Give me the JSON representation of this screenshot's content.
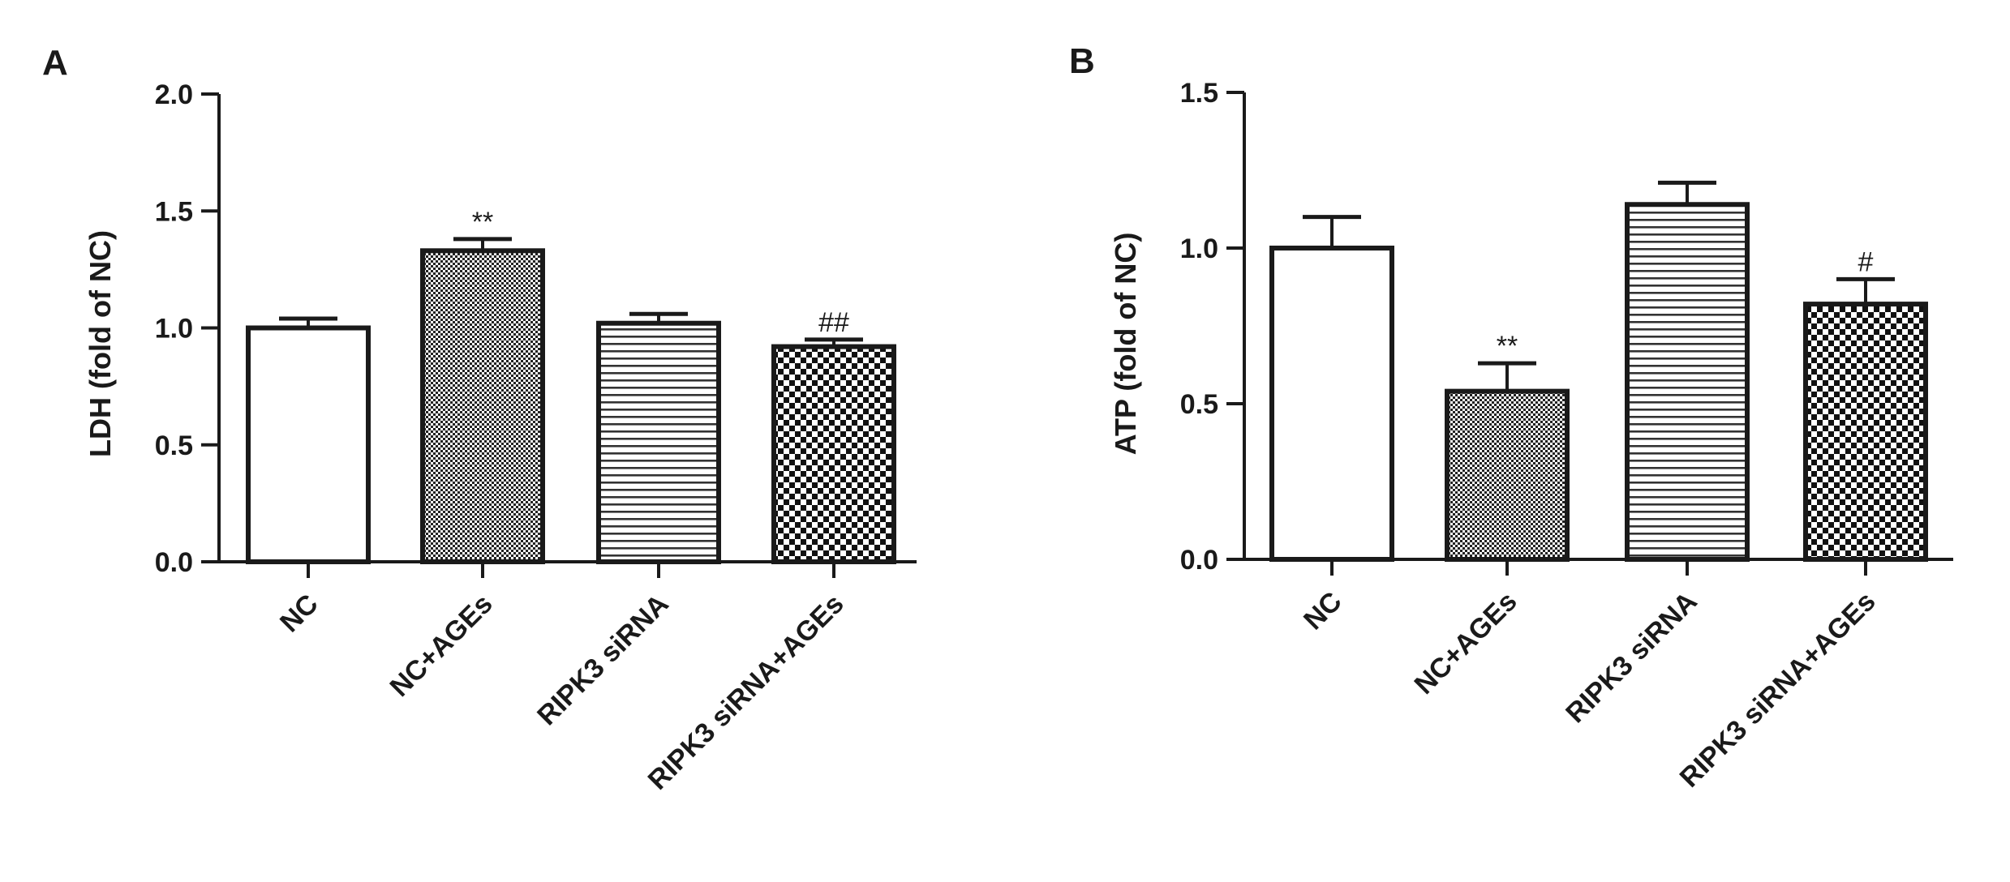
{
  "chart_data": [
    {
      "type": "bar",
      "panel": "A",
      "ylabel": "LDH (fold of NC)",
      "xlabel": "",
      "ylim": [
        0,
        2.0
      ],
      "yticks": [
        0.0,
        0.5,
        1.0,
        1.5,
        2.0
      ],
      "ytick_labels": [
        "0.0",
        "0.5",
        "1.0",
        "1.5",
        "2.0"
      ],
      "categories": [
        "NC",
        "NC+AGEs",
        "RIPK3 siRNA",
        "RIPK3 siRNA+AGEs"
      ],
      "values": [
        1.0,
        1.33,
        1.02,
        0.92
      ],
      "errors": [
        0.04,
        0.05,
        0.04,
        0.03
      ],
      "significance": [
        "",
        "**",
        "",
        "##"
      ],
      "patterns": [
        "white",
        "fine-dots",
        "horizontal-lines",
        "checker"
      ],
      "grid": false
    },
    {
      "type": "bar",
      "panel": "B",
      "ylabel": "ATP (fold of NC)",
      "xlabel": "",
      "ylim": [
        0,
        1.5
      ],
      "yticks": [
        0.0,
        0.5,
        1.0,
        1.5
      ],
      "ytick_labels": [
        "0.0",
        "0.5",
        "1.0",
        "1.5"
      ],
      "categories": [
        "NC",
        "NC+AGEs",
        "RIPK3 siRNA",
        "RIPK3 siRNA+AGEs"
      ],
      "values": [
        1.0,
        0.54,
        1.14,
        0.82
      ],
      "errors": [
        0.1,
        0.09,
        0.07,
        0.08
      ],
      "significance": [
        "",
        "**",
        "",
        "#"
      ],
      "patterns": [
        "white",
        "fine-dots",
        "horizontal-lines",
        "checker"
      ],
      "grid": false
    }
  ]
}
